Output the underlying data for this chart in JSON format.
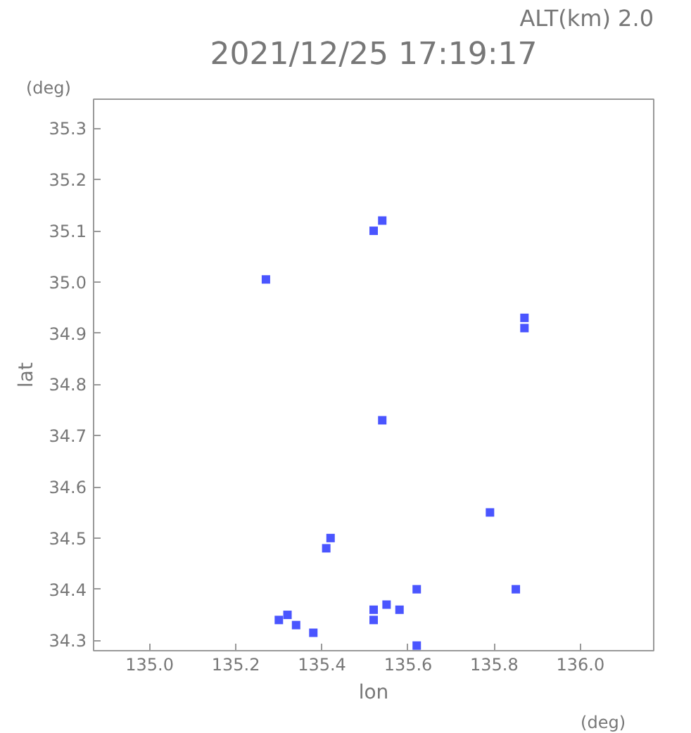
{
  "chart_data": {
    "type": "scatter",
    "title": "2021/12/25 17:19:17",
    "xlabel": "lon",
    "ylabel": "lat",
    "annotations": [
      "ALT(km) 2.0",
      "(deg)",
      "(deg)"
    ],
    "x": [
      135.54,
      135.52,
      135.27,
      135.87,
      135.87,
      135.54,
      135.79,
      135.41,
      135.42,
      135.62,
      135.85,
      135.3,
      135.32,
      135.34,
      135.38,
      135.62,
      135.52,
      135.55,
      135.58,
      135.52
    ],
    "series": [
      {
        "color": "#4a55ff",
        "values": [
          35.12,
          35.1,
          35.005,
          34.93,
          34.91,
          34.73,
          34.55,
          34.48,
          34.5,
          34.4,
          34.4,
          34.34,
          34.35,
          34.33,
          34.315,
          34.29,
          34.36,
          34.37,
          34.36,
          34.34
        ]
      }
    ],
    "marker": "square",
    "grid": false,
    "xlim": [
      134.87,
      136.17
    ],
    "ylim": [
      34.28,
      35.357
    ],
    "xticks": [
      {
        "value": 135,
        "label": "135.0"
      },
      135.2,
      135.4,
      135.6,
      135.8,
      {
        "value": 136,
        "label": "136.0"
      }
    ],
    "yticks": [
      34.3,
      34.4,
      34.5,
      34.6,
      34.7,
      34.8,
      34.9,
      {
        "value": 35,
        "label": "35.0"
      },
      35.1,
      35.2,
      35.3
    ]
  }
}
